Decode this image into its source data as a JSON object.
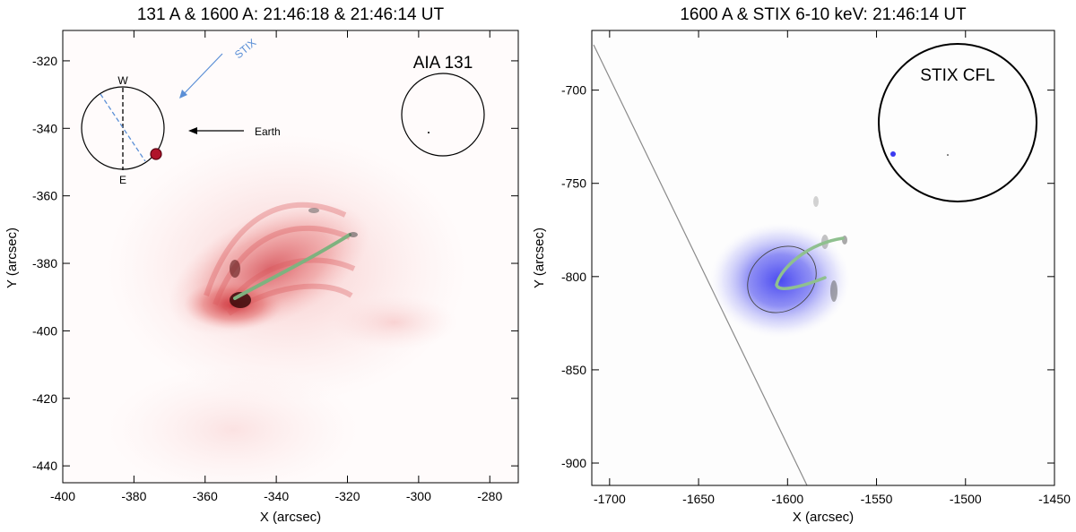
{
  "chart_data": [
    {
      "type": "heatmap",
      "title": "131 A & 1600 A: 21:46:18 & 21:46:14 UT",
      "xlabel": "X (arcsec)",
      "ylabel": "Y (arcsec)",
      "xlim": [
        -400,
        -272
      ],
      "ylim": [
        -445,
        -311
      ],
      "xticks": [
        -400,
        -380,
        -360,
        -340,
        -320,
        -300,
        -280
      ],
      "yticks": [
        -440,
        -420,
        -400,
        -380,
        -360,
        -340,
        -320
      ],
      "inset_label": "AIA 131",
      "orientation_labels": {
        "west": "W",
        "east": "E",
        "stix": "STIX",
        "earth": "Earth"
      },
      "colors": {
        "emission": "#d94a4a",
        "loop": "#7fb27f",
        "stix_arrow": "#5b8fd6",
        "footpoint": "#b0132a"
      }
    },
    {
      "type": "heatmap",
      "title": "1600 A & STIX 6-10 keV: 21:46:14 UT",
      "xlabel": "X (arcsec)",
      "ylabel": "Y (arcsec)",
      "xlim": [
        -1710,
        -1450
      ],
      "ylim": [
        -912,
        -668
      ],
      "xticks": [
        -1700,
        -1650,
        -1600,
        -1550,
        -1500,
        -1450
      ],
      "yticks": [
        -900,
        -850,
        -800,
        -750,
        -700
      ],
      "inset_label": "STIX CFL",
      "colors": {
        "source": "#5a5af0",
        "loop": "#8fc08f",
        "contour": "#444444"
      }
    }
  ]
}
